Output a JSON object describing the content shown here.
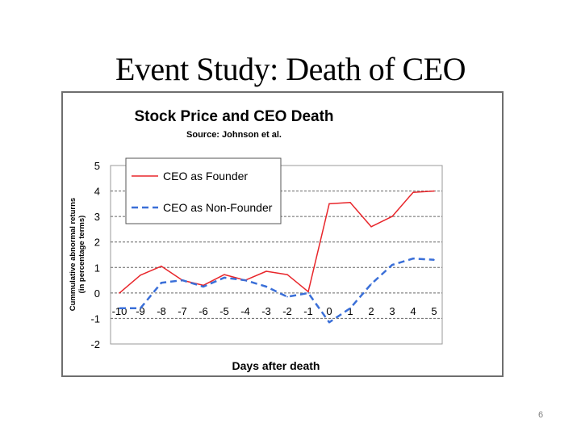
{
  "slide": {
    "title": "Event Study: Death of CEO",
    "page_number": "6"
  },
  "chart_data": {
    "type": "line",
    "title": "Stock Price and CEO Death",
    "subtitle": "Source: Johnson et al.",
    "xlabel": "Days after death",
    "ylabel_line1": "Cummulative abnormal returns",
    "ylabel_line2": "(in percentage terms)",
    "x": [
      -10,
      -9,
      -8,
      -7,
      -6,
      -5,
      -4,
      -3,
      -2,
      -1,
      0,
      1,
      2,
      3,
      4,
      5
    ],
    "x_tick_labels": [
      "-10",
      "-9",
      "-8",
      "-7",
      "-6",
      "-5",
      "-4",
      "-3",
      "-2",
      "-1",
      "0",
      "1",
      "2",
      "3",
      "4",
      "5"
    ],
    "y_tick_labels": [
      "5",
      "4",
      "3",
      "2",
      "1",
      "0",
      "-1",
      "-2"
    ],
    "ylim": [
      -2,
      5
    ],
    "grid": "horizontal dashed",
    "legend_position": "top-left",
    "series": [
      {
        "name": "CEO as Founder",
        "color": "#e8262b",
        "line_style": "solid",
        "values": [
          0.0,
          0.7,
          1.05,
          0.5,
          0.3,
          0.72,
          0.5,
          0.85,
          0.72,
          0.05,
          3.5,
          3.55,
          2.6,
          3.0,
          3.95,
          4.0
        ]
      },
      {
        "name": "CEO as Non-Founder",
        "color": "#3a6fd8",
        "line_style": "dashed",
        "values": [
          -0.6,
          -0.6,
          0.4,
          0.5,
          0.25,
          0.6,
          0.5,
          0.25,
          -0.15,
          0.0,
          -1.15,
          -0.6,
          0.35,
          1.1,
          1.35,
          1.3
        ]
      }
    ]
  }
}
